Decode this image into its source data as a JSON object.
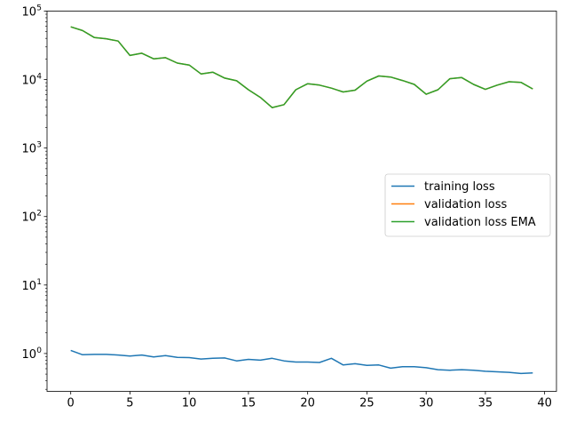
{
  "chart_data": {
    "type": "line",
    "xlim": [
      -2,
      41
    ],
    "ylim": [
      0.28,
      100000
    ],
    "y_scale": "log",
    "grid": false,
    "legend_placement": "center-right",
    "x_ticks": [
      {
        "value": 0,
        "label": "0"
      },
      {
        "value": 5,
        "label": "5"
      },
      {
        "value": 10,
        "label": "10"
      },
      {
        "value": 15,
        "label": "15"
      },
      {
        "value": 20,
        "label": "20"
      },
      {
        "value": 25,
        "label": "25"
      },
      {
        "value": 30,
        "label": "30"
      },
      {
        "value": 35,
        "label": "35"
      },
      {
        "value": 40,
        "label": "40"
      }
    ],
    "y_ticks": [
      {
        "value": 1,
        "base": "10",
        "exp": "0"
      },
      {
        "value": 10,
        "base": "10",
        "exp": "1"
      },
      {
        "value": 100,
        "base": "10",
        "exp": "2"
      },
      {
        "value": 1000,
        "base": "10",
        "exp": "3"
      },
      {
        "value": 10000,
        "base": "10",
        "exp": "4"
      },
      {
        "value": 100000,
        "base": "10",
        "exp": "5"
      }
    ],
    "x": [
      0,
      1,
      2,
      3,
      4,
      5,
      6,
      7,
      8,
      9,
      10,
      11,
      12,
      13,
      14,
      15,
      16,
      17,
      18,
      19,
      20,
      21,
      22,
      23,
      24,
      25,
      26,
      27,
      28,
      29,
      30,
      31,
      32,
      33,
      34,
      35,
      36,
      37,
      38,
      39
    ],
    "series": [
      {
        "name": "training loss",
        "color": "#1f77b4",
        "values": [
          1.11,
          0.96,
          0.97,
          0.97,
          0.95,
          0.92,
          0.95,
          0.89,
          0.93,
          0.88,
          0.87,
          0.83,
          0.85,
          0.86,
          0.78,
          0.82,
          0.8,
          0.85,
          0.78,
          0.75,
          0.75,
          0.74,
          0.85,
          0.68,
          0.71,
          0.67,
          0.68,
          0.61,
          0.64,
          0.64,
          0.62,
          0.58,
          0.57,
          0.58,
          0.57,
          0.55,
          0.54,
          0.53,
          0.51,
          0.52
        ]
      },
      {
        "name": "validation loss",
        "color": "#ff7f0e",
        "values": [
          59000,
          52000,
          41000,
          39500,
          36500,
          22500,
          24300,
          20100,
          20900,
          17400,
          16300,
          12100,
          12800,
          10500,
          9600,
          7100,
          5500,
          3900,
          4300,
          7100,
          8700,
          8300,
          7500,
          6600,
          7000,
          9500,
          11300,
          10900,
          9700,
          8500,
          6100,
          7100,
          10300,
          10700,
          8500,
          7200,
          8300,
          9300,
          9100,
          7300
        ]
      },
      {
        "name": "validation loss EMA",
        "color": "#2ca02c",
        "values": [
          59000,
          52000,
          41000,
          39500,
          36500,
          22500,
          24300,
          20100,
          20900,
          17400,
          16300,
          12100,
          12800,
          10500,
          9600,
          7100,
          5500,
          3900,
          4300,
          7100,
          8700,
          8300,
          7500,
          6600,
          7000,
          9500,
          11300,
          10900,
          9700,
          8500,
          6100,
          7100,
          10300,
          10700,
          8500,
          7200,
          8300,
          9300,
          9100,
          7300
        ]
      }
    ]
  }
}
